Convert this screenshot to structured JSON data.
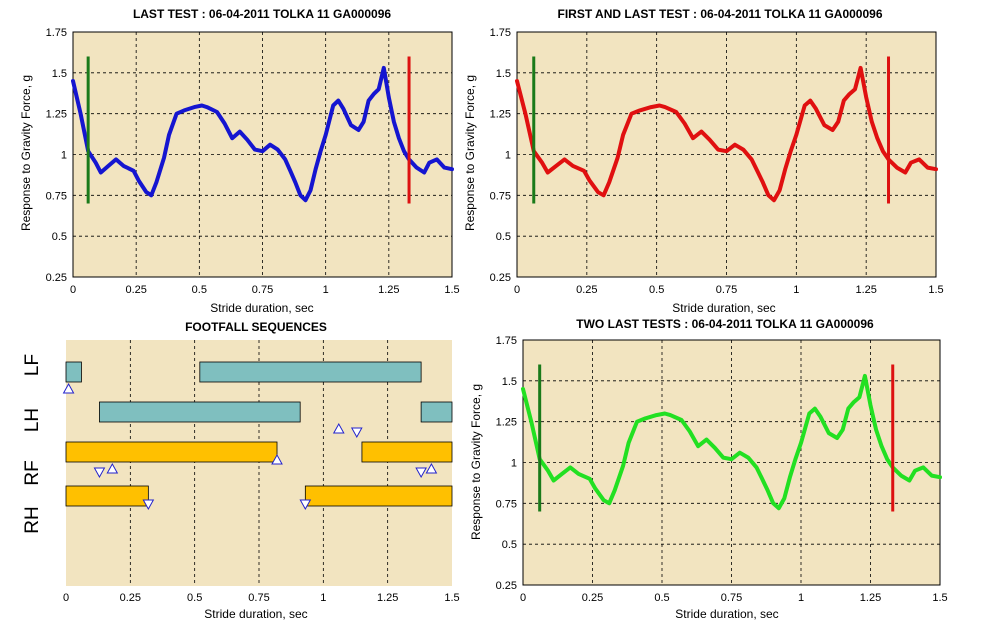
{
  "colors": {
    "plot_bg": "#f2e4c0",
    "grid": "#000000",
    "marker_start": "#1a7a1a",
    "marker_end": "#dd1111",
    "bar_fore": "#7fbfbf",
    "bar_hind": "#ffc000",
    "triangle": "#2222cc"
  },
  "chart_data": [
    {
      "id": "last",
      "type": "line",
      "title": "LAST TEST : 06-04-2011 TOLKA 11 GA000096",
      "xlabel": "Stride duration, sec",
      "ylabel": "Response to Gravity Force, g",
      "xlim": [
        0,
        1.5
      ],
      "ylim": [
        0.25,
        1.75
      ],
      "xticks": [
        "0",
        "0.25",
        "0.5",
        "0.75",
        "1",
        "1.25",
        "1.5"
      ],
      "yticks": [
        "0.25",
        "0.5",
        "0.75",
        "1",
        "1.25",
        "1.5",
        "1.75"
      ],
      "grid": true,
      "series_color": "#1515d0",
      "markers": [
        {
          "x": 0.06,
          "y": [
            0.7,
            1.6
          ],
          "color": "#1a7a1a"
        },
        {
          "x": 1.33,
          "y": [
            0.7,
            1.6
          ],
          "color": "#dd1111"
        }
      ],
      "series": [
        {
          "x": [
            0,
            0.03,
            0.06,
            0.09,
            0.11,
            0.14,
            0.17,
            0.2,
            0.24,
            0.26,
            0.29,
            0.31,
            0.33,
            0.36,
            0.38,
            0.41,
            0.44,
            0.48,
            0.51,
            0.53,
            0.57,
            0.6,
            0.63,
            0.66,
            0.69,
            0.72,
            0.75,
            0.78,
            0.81,
            0.84,
            0.86,
            0.88,
            0.9,
            0.92,
            0.94,
            0.96,
            0.98,
            1.0,
            1.03,
            1.05,
            1.07,
            1.1,
            1.13,
            1.15,
            1.17,
            1.19,
            1.21,
            1.23,
            1.25,
            1.27,
            1.29,
            1.31,
            1.33,
            1.36,
            1.39,
            1.41,
            1.44,
            1.47,
            1.5
          ],
          "y": [
            1.45,
            1.25,
            1.02,
            0.95,
            0.89,
            0.93,
            0.97,
            0.93,
            0.9,
            0.84,
            0.77,
            0.75,
            0.83,
            0.98,
            1.12,
            1.25,
            1.27,
            1.29,
            1.3,
            1.29,
            1.26,
            1.19,
            1.1,
            1.14,
            1.09,
            1.03,
            1.02,
            1.06,
            1.03,
            0.97,
            0.9,
            0.83,
            0.75,
            0.72,
            0.78,
            0.91,
            1.02,
            1.12,
            1.3,
            1.33,
            1.28,
            1.18,
            1.15,
            1.2,
            1.33,
            1.37,
            1.4,
            1.53,
            1.35,
            1.2,
            1.1,
            1.02,
            0.97,
            0.92,
            0.89,
            0.95,
            0.97,
            0.92,
            0.91
          ]
        }
      ]
    },
    {
      "id": "firstlast",
      "type": "line",
      "title": "FIRST AND LAST TEST : 06-04-2011 TOLKA 11 GA000096",
      "xlabel": "Stride duration, sec",
      "ylabel": "Response to Gravity Force, g",
      "xlim": [
        0,
        1.5
      ],
      "ylim": [
        0.25,
        1.75
      ],
      "xticks": [
        "0",
        "0.25",
        "0.5",
        "0.75",
        "1",
        "1.25",
        "1.5"
      ],
      "yticks": [
        "0.25",
        "0.5",
        "0.75",
        "1",
        "1.25",
        "1.5",
        "1.75"
      ],
      "grid": true,
      "series_color": "#e01010",
      "markers": [
        {
          "x": 0.06,
          "y": [
            0.7,
            1.6
          ],
          "color": "#1a7a1a"
        },
        {
          "x": 1.33,
          "y": [
            0.7,
            1.6
          ],
          "color": "#dd1111"
        }
      ],
      "series": [
        {
          "x": [
            0,
            0.03,
            0.06,
            0.09,
            0.11,
            0.14,
            0.17,
            0.2,
            0.24,
            0.26,
            0.29,
            0.31,
            0.33,
            0.36,
            0.38,
            0.41,
            0.44,
            0.48,
            0.51,
            0.53,
            0.57,
            0.6,
            0.63,
            0.66,
            0.69,
            0.72,
            0.75,
            0.78,
            0.81,
            0.84,
            0.86,
            0.88,
            0.9,
            0.92,
            0.94,
            0.96,
            0.98,
            1.0,
            1.03,
            1.05,
            1.07,
            1.1,
            1.13,
            1.15,
            1.17,
            1.19,
            1.21,
            1.23,
            1.25,
            1.27,
            1.29,
            1.31,
            1.33,
            1.36,
            1.39,
            1.41,
            1.44,
            1.47,
            1.5
          ],
          "y": [
            1.45,
            1.25,
            1.02,
            0.95,
            0.89,
            0.93,
            0.97,
            0.93,
            0.9,
            0.84,
            0.77,
            0.75,
            0.83,
            0.98,
            1.12,
            1.25,
            1.27,
            1.29,
            1.3,
            1.29,
            1.26,
            1.19,
            1.1,
            1.14,
            1.09,
            1.03,
            1.02,
            1.06,
            1.03,
            0.97,
            0.9,
            0.83,
            0.75,
            0.72,
            0.78,
            0.91,
            1.02,
            1.12,
            1.3,
            1.33,
            1.28,
            1.18,
            1.15,
            1.2,
            1.33,
            1.37,
            1.4,
            1.53,
            1.35,
            1.2,
            1.1,
            1.02,
            0.97,
            0.92,
            0.89,
            0.95,
            0.97,
            0.92,
            0.91
          ]
        }
      ]
    },
    {
      "id": "footfall",
      "type": "gantt",
      "title": "FOOTFALL SEQUENCES",
      "xlabel": "Stride duration, sec",
      "xlim": [
        0,
        1.5
      ],
      "xticks": [
        "0",
        "0.25",
        "0.5",
        "0.75",
        "1",
        "1.25",
        "1.5"
      ],
      "rows": [
        "LF",
        "LH",
        "RF",
        "RH"
      ],
      "bars": [
        {
          "row": "LF",
          "start": 0,
          "end": 0.06,
          "kind": "fore"
        },
        {
          "row": "LF",
          "start": 0.52,
          "end": 1.38,
          "kind": "fore"
        },
        {
          "row": "LH",
          "start": 0.13,
          "end": 0.91,
          "kind": "fore"
        },
        {
          "row": "LH",
          "start": 1.38,
          "end": 1.5,
          "kind": "fore"
        },
        {
          "row": "RF",
          "start": 0,
          "end": 0.82,
          "kind": "hind"
        },
        {
          "row": "RF",
          "start": 1.15,
          "end": 1.5,
          "kind": "hind"
        },
        {
          "row": "RH",
          "start": 0,
          "end": 0.32,
          "kind": "hind"
        },
        {
          "row": "RH",
          "start": 0.93,
          "end": 1.5,
          "kind": "hind"
        }
      ],
      "markers_up": [
        {
          "x": 0.01,
          "row": "LF",
          "pos": "below"
        },
        {
          "x": 1.06,
          "row": "LH",
          "pos": "below"
        },
        {
          "x": 0.18,
          "row": "RF",
          "pos": "below"
        },
        {
          "x": 1.42,
          "row": "RF",
          "pos": "below"
        },
        {
          "x": 0.82,
          "row": "RF",
          "pos": "end"
        }
      ],
      "markers_down": [
        {
          "x": 1.13,
          "row": "LH",
          "pos": "lower"
        },
        {
          "x": 0.13,
          "row": "RF",
          "pos": "lower"
        },
        {
          "x": 1.38,
          "row": "RF",
          "pos": "lower"
        },
        {
          "x": 0.32,
          "row": "RH",
          "pos": "end"
        },
        {
          "x": 0.93,
          "row": "RH",
          "pos": "end"
        }
      ]
    },
    {
      "id": "twolast",
      "type": "line",
      "title": "TWO LAST TESTS : 06-04-2011 TOLKA 11 GA000096",
      "xlabel": "Stride duration, sec",
      "ylabel": "Response to Gravity Force, g",
      "xlim": [
        0,
        1.5
      ],
      "ylim": [
        0.25,
        1.75
      ],
      "xticks": [
        "0",
        "0.25",
        "0.5",
        "0.75",
        "1",
        "1.25",
        "1.5"
      ],
      "yticks": [
        "0.25",
        "0.5",
        "0.75",
        "1",
        "1.25",
        "1.5",
        "1.75"
      ],
      "grid": true,
      "series_color": "#22e022",
      "markers": [
        {
          "x": 0.06,
          "y": [
            0.7,
            1.6
          ],
          "color": "#1a7a1a"
        },
        {
          "x": 1.33,
          "y": [
            0.7,
            1.6
          ],
          "color": "#dd1111"
        }
      ],
      "series": [
        {
          "x": [
            0,
            0.03,
            0.06,
            0.09,
            0.11,
            0.14,
            0.17,
            0.2,
            0.24,
            0.26,
            0.29,
            0.31,
            0.33,
            0.36,
            0.38,
            0.41,
            0.44,
            0.48,
            0.51,
            0.53,
            0.57,
            0.6,
            0.63,
            0.66,
            0.69,
            0.72,
            0.75,
            0.78,
            0.81,
            0.84,
            0.86,
            0.88,
            0.9,
            0.92,
            0.94,
            0.96,
            0.98,
            1.0,
            1.03,
            1.05,
            1.07,
            1.1,
            1.13,
            1.15,
            1.17,
            1.19,
            1.21,
            1.23,
            1.25,
            1.27,
            1.29,
            1.31,
            1.33,
            1.36,
            1.39,
            1.41,
            1.44,
            1.47,
            1.5
          ],
          "y": [
            1.45,
            1.25,
            1.02,
            0.95,
            0.89,
            0.93,
            0.97,
            0.93,
            0.9,
            0.84,
            0.77,
            0.75,
            0.83,
            0.98,
            1.12,
            1.25,
            1.27,
            1.29,
            1.3,
            1.29,
            1.26,
            1.19,
            1.1,
            1.14,
            1.09,
            1.03,
            1.02,
            1.06,
            1.03,
            0.97,
            0.9,
            0.83,
            0.75,
            0.72,
            0.78,
            0.91,
            1.02,
            1.12,
            1.3,
            1.33,
            1.28,
            1.18,
            1.15,
            1.2,
            1.33,
            1.37,
            1.4,
            1.53,
            1.35,
            1.2,
            1.1,
            1.02,
            0.97,
            0.92,
            0.89,
            0.95,
            0.97,
            0.92,
            0.91
          ]
        }
      ]
    }
  ]
}
